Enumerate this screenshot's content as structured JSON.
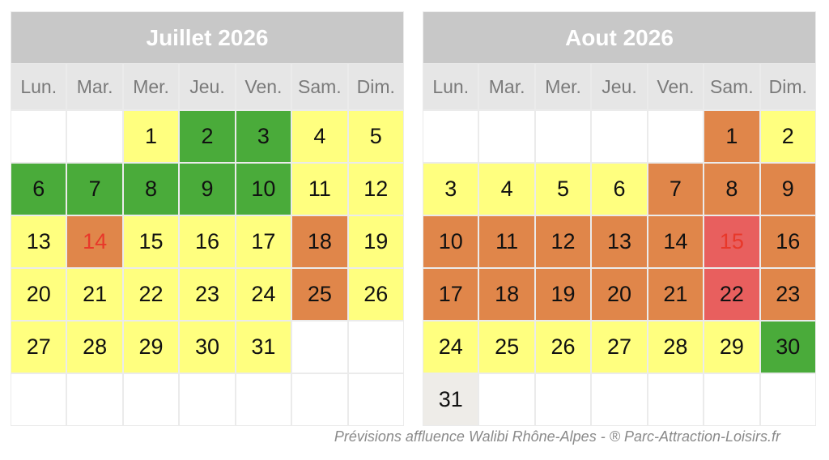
{
  "footer": "Prévisions affluence Walibi Rhône-Alpes -  ® Parc-Attraction-Loisirs.fr",
  "colors": {
    "yellow": "#ffff7f",
    "green": "#4aab3a",
    "orange": "#e0864a",
    "red": "#e85f5e",
    "grey": "#eeece8"
  },
  "calendars": [
    {
      "title": "Juillet 2026",
      "weekdays": [
        "Lun.",
        "Mar.",
        "Mer.",
        "Jeu.",
        "Ven.",
        "Sam.",
        "Dim."
      ],
      "weeks": [
        [
          {
            "d": "",
            "c": "empty"
          },
          {
            "d": "",
            "c": "empty"
          },
          {
            "d": "1",
            "c": "yellow"
          },
          {
            "d": "2",
            "c": "green"
          },
          {
            "d": "3",
            "c": "green"
          },
          {
            "d": "4",
            "c": "yellow"
          },
          {
            "d": "5",
            "c": "yellow"
          }
        ],
        [
          {
            "d": "6",
            "c": "green"
          },
          {
            "d": "7",
            "c": "green"
          },
          {
            "d": "8",
            "c": "green"
          },
          {
            "d": "9",
            "c": "green"
          },
          {
            "d": "10",
            "c": "green"
          },
          {
            "d": "11",
            "c": "yellow"
          },
          {
            "d": "12",
            "c": "yellow"
          }
        ],
        [
          {
            "d": "13",
            "c": "yellow"
          },
          {
            "d": "14",
            "c": "orange",
            "t": "red"
          },
          {
            "d": "15",
            "c": "yellow"
          },
          {
            "d": "16",
            "c": "yellow"
          },
          {
            "d": "17",
            "c": "yellow"
          },
          {
            "d": "18",
            "c": "orange"
          },
          {
            "d": "19",
            "c": "yellow"
          }
        ],
        [
          {
            "d": "20",
            "c": "yellow"
          },
          {
            "d": "21",
            "c": "yellow"
          },
          {
            "d": "22",
            "c": "yellow"
          },
          {
            "d": "23",
            "c": "yellow"
          },
          {
            "d": "24",
            "c": "yellow"
          },
          {
            "d": "25",
            "c": "orange"
          },
          {
            "d": "26",
            "c": "yellow"
          }
        ],
        [
          {
            "d": "27",
            "c": "yellow"
          },
          {
            "d": "28",
            "c": "yellow"
          },
          {
            "d": "29",
            "c": "yellow"
          },
          {
            "d": "30",
            "c": "yellow"
          },
          {
            "d": "31",
            "c": "yellow"
          },
          {
            "d": "",
            "c": "empty"
          },
          {
            "d": "",
            "c": "empty"
          }
        ],
        [
          {
            "d": "",
            "c": "empty"
          },
          {
            "d": "",
            "c": "empty"
          },
          {
            "d": "",
            "c": "empty"
          },
          {
            "d": "",
            "c": "empty"
          },
          {
            "d": "",
            "c": "empty"
          },
          {
            "d": "",
            "c": "empty"
          },
          {
            "d": "",
            "c": "empty"
          }
        ]
      ]
    },
    {
      "title": "Aout 2026",
      "weekdays": [
        "Lun.",
        "Mar.",
        "Mer.",
        "Jeu.",
        "Ven.",
        "Sam.",
        "Dim."
      ],
      "weeks": [
        [
          {
            "d": "",
            "c": "empty"
          },
          {
            "d": "",
            "c": "empty"
          },
          {
            "d": "",
            "c": "empty"
          },
          {
            "d": "",
            "c": "empty"
          },
          {
            "d": "",
            "c": "empty"
          },
          {
            "d": "1",
            "c": "orange"
          },
          {
            "d": "2",
            "c": "yellow"
          }
        ],
        [
          {
            "d": "3",
            "c": "yellow"
          },
          {
            "d": "4",
            "c": "yellow"
          },
          {
            "d": "5",
            "c": "yellow"
          },
          {
            "d": "6",
            "c": "yellow"
          },
          {
            "d": "7",
            "c": "orange"
          },
          {
            "d": "8",
            "c": "orange"
          },
          {
            "d": "9",
            "c": "orange"
          }
        ],
        [
          {
            "d": "10",
            "c": "orange"
          },
          {
            "d": "11",
            "c": "orange"
          },
          {
            "d": "12",
            "c": "orange"
          },
          {
            "d": "13",
            "c": "orange"
          },
          {
            "d": "14",
            "c": "orange"
          },
          {
            "d": "15",
            "c": "red",
            "t": "red"
          },
          {
            "d": "16",
            "c": "orange"
          }
        ],
        [
          {
            "d": "17",
            "c": "orange"
          },
          {
            "d": "18",
            "c": "orange"
          },
          {
            "d": "19",
            "c": "orange"
          },
          {
            "d": "20",
            "c": "orange"
          },
          {
            "d": "21",
            "c": "orange"
          },
          {
            "d": "22",
            "c": "red"
          },
          {
            "d": "23",
            "c": "orange"
          }
        ],
        [
          {
            "d": "24",
            "c": "yellow"
          },
          {
            "d": "25",
            "c": "yellow"
          },
          {
            "d": "26",
            "c": "yellow"
          },
          {
            "d": "27",
            "c": "yellow"
          },
          {
            "d": "28",
            "c": "yellow"
          },
          {
            "d": "29",
            "c": "yellow"
          },
          {
            "d": "30",
            "c": "green"
          }
        ],
        [
          {
            "d": "31",
            "c": "grey"
          },
          {
            "d": "",
            "c": "empty"
          },
          {
            "d": "",
            "c": "empty"
          },
          {
            "d": "",
            "c": "empty"
          },
          {
            "d": "",
            "c": "empty"
          },
          {
            "d": "",
            "c": "empty"
          },
          {
            "d": "",
            "c": "empty"
          }
        ]
      ]
    }
  ]
}
